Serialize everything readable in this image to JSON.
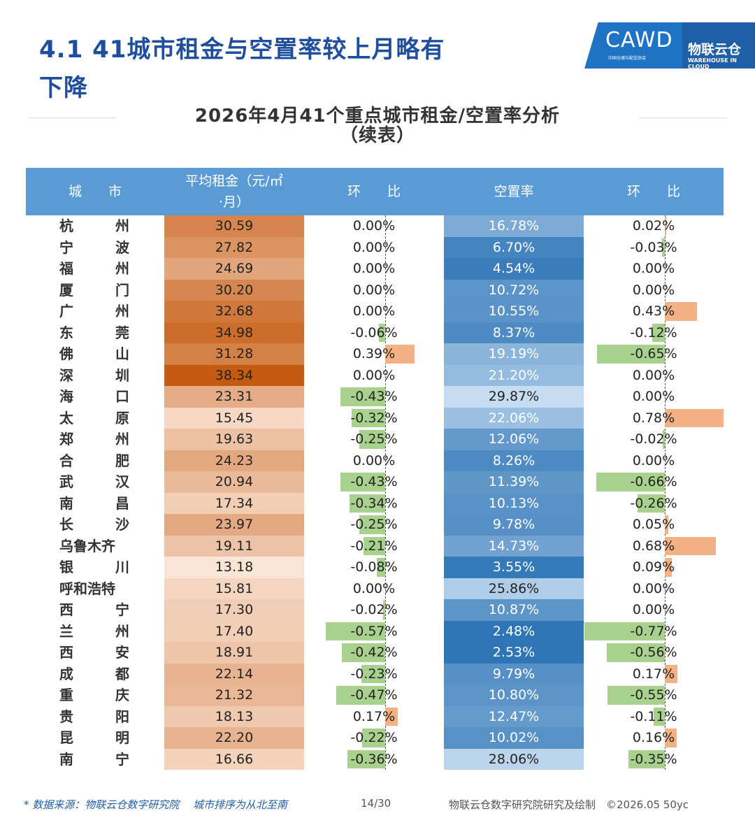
{
  "page_title_line1": "4.1 41城市租金与空置率较上月略有",
  "page_title_line2": "下降",
  "logo": {
    "cawd": "CAWD",
    "cawd_sub": "中国仓储与配送协会",
    "cloud_cn": "物联云仓",
    "cloud_en": "WAREHOUSE IN CLOUD"
  },
  "chart_data": {
    "type": "table",
    "title_line1": "2026年4月41个重点城市租金/空置率分析",
    "title_line2": "（续表）",
    "columns": [
      "城　　市",
      "平均租金（元/㎡·月）",
      "环　　比",
      "空置率",
      "环　　比"
    ],
    "rows": [
      {
        "city": [
          "杭",
          "州"
        ],
        "rent": "30.59",
        "rent_val": 30.59,
        "rent_mom": "0.00%",
        "rent_mom_val": 0.0,
        "vacancy": "16.78%",
        "vacancy_val": 16.78,
        "vac_mom": "0.02%",
        "vac_mom_val": 0.02
      },
      {
        "city": [
          "宁",
          "波"
        ],
        "rent": "27.82",
        "rent_val": 27.82,
        "rent_mom": "0.00%",
        "rent_mom_val": 0.0,
        "vacancy": "6.70%",
        "vacancy_val": 6.7,
        "vac_mom": "-0.03%",
        "vac_mom_val": -0.03
      },
      {
        "city": [
          "福",
          "州"
        ],
        "rent": "24.69",
        "rent_val": 24.69,
        "rent_mom": "0.00%",
        "rent_mom_val": 0.0,
        "vacancy": "4.54%",
        "vacancy_val": 4.54,
        "vac_mom": "0.00%",
        "vac_mom_val": 0.0
      },
      {
        "city": [
          "厦",
          "门"
        ],
        "rent": "30.20",
        "rent_val": 30.2,
        "rent_mom": "0.00%",
        "rent_mom_val": 0.0,
        "vacancy": "10.72%",
        "vacancy_val": 10.72,
        "vac_mom": "0.00%",
        "vac_mom_val": 0.0
      },
      {
        "city": [
          "广",
          "州"
        ],
        "rent": "32.68",
        "rent_val": 32.68,
        "rent_mom": "0.00%",
        "rent_mom_val": 0.0,
        "vacancy": "10.55%",
        "vacancy_val": 10.55,
        "vac_mom": "0.43%",
        "vac_mom_val": 0.43
      },
      {
        "city": [
          "东",
          "莞"
        ],
        "rent": "34.98",
        "rent_val": 34.98,
        "rent_mom": "-0.06%",
        "rent_mom_val": -0.06,
        "vacancy": "8.37%",
        "vacancy_val": 8.37,
        "vac_mom": "-0.12%",
        "vac_mom_val": -0.12
      },
      {
        "city": [
          "佛",
          "山"
        ],
        "rent": "31.28",
        "rent_val": 31.28,
        "rent_mom": "0.39%",
        "rent_mom_val": 0.39,
        "vacancy": "19.19%",
        "vacancy_val": 19.19,
        "vac_mom": "-0.65%",
        "vac_mom_val": -0.65
      },
      {
        "city": [
          "深",
          "圳"
        ],
        "rent": "38.34",
        "rent_val": 38.34,
        "rent_mom": "0.00%",
        "rent_mom_val": 0.0,
        "vacancy": "21.20%",
        "vacancy_val": 21.2,
        "vac_mom": "0.00%",
        "vac_mom_val": 0.0
      },
      {
        "city": [
          "海",
          "口"
        ],
        "rent": "23.31",
        "rent_val": 23.31,
        "rent_mom": "-0.43%",
        "rent_mom_val": -0.43,
        "vacancy": "29.87%",
        "vacancy_val": 29.87,
        "vac_mom": "0.00%",
        "vac_mom_val": 0.0
      },
      {
        "city": [
          "太",
          "原"
        ],
        "rent": "15.45",
        "rent_val": 15.45,
        "rent_mom": "-0.32%",
        "rent_mom_val": -0.32,
        "vacancy": "22.06%",
        "vacancy_val": 22.06,
        "vac_mom": "0.78%",
        "vac_mom_val": 0.78
      },
      {
        "city": [
          "郑",
          "州"
        ],
        "rent": "19.63",
        "rent_val": 19.63,
        "rent_mom": "-0.25%",
        "rent_mom_val": -0.25,
        "vacancy": "12.06%",
        "vacancy_val": 12.06,
        "vac_mom": "-0.02%",
        "vac_mom_val": -0.02
      },
      {
        "city": [
          "合",
          "肥"
        ],
        "rent": "24.23",
        "rent_val": 24.23,
        "rent_mom": "0.00%",
        "rent_mom_val": 0.0,
        "vacancy": "8.26%",
        "vacancy_val": 8.26,
        "vac_mom": "0.00%",
        "vac_mom_val": 0.0
      },
      {
        "city": [
          "武",
          "汉"
        ],
        "rent": "20.94",
        "rent_val": 20.94,
        "rent_mom": "-0.43%",
        "rent_mom_val": -0.43,
        "vacancy": "11.39%",
        "vacancy_val": 11.39,
        "vac_mom": "-0.66%",
        "vac_mom_val": -0.66
      },
      {
        "city": [
          "南",
          "昌"
        ],
        "rent": "17.34",
        "rent_val": 17.34,
        "rent_mom": "-0.34%",
        "rent_mom_val": -0.34,
        "vacancy": "10.13%",
        "vacancy_val": 10.13,
        "vac_mom": "-0.26%",
        "vac_mom_val": -0.26
      },
      {
        "city": [
          "长",
          "沙"
        ],
        "rent": "23.97",
        "rent_val": 23.97,
        "rent_mom": "-0.25%",
        "rent_mom_val": -0.25,
        "vacancy": "9.78%",
        "vacancy_val": 9.78,
        "vac_mom": "0.05%",
        "vac_mom_val": 0.05
      },
      {
        "city": [
          "乌鲁木齐"
        ],
        "rent": "19.11",
        "rent_val": 19.11,
        "rent_mom": "-0.21%",
        "rent_mom_val": -0.21,
        "vacancy": "14.73%",
        "vacancy_val": 14.73,
        "vac_mom": "0.68%",
        "vac_mom_val": 0.68
      },
      {
        "city": [
          "银",
          "川"
        ],
        "rent": "13.18",
        "rent_val": 13.18,
        "rent_mom": "-0.08%",
        "rent_mom_val": -0.08,
        "vacancy": "3.55%",
        "vacancy_val": 3.55,
        "vac_mom": "0.09%",
        "vac_mom_val": 0.09
      },
      {
        "city": [
          "呼和浩特"
        ],
        "rent": "15.81",
        "rent_val": 15.81,
        "rent_mom": "0.00%",
        "rent_mom_val": 0.0,
        "vacancy": "25.86%",
        "vacancy_val": 25.86,
        "vac_mom": "0.00%",
        "vac_mom_val": 0.0
      },
      {
        "city": [
          "西",
          "宁"
        ],
        "rent": "17.30",
        "rent_val": 17.3,
        "rent_mom": "-0.02%",
        "rent_mom_val": -0.02,
        "vacancy": "10.87%",
        "vacancy_val": 10.87,
        "vac_mom": "0.00%",
        "vac_mom_val": 0.0
      },
      {
        "city": [
          "兰",
          "州"
        ],
        "rent": "17.40",
        "rent_val": 17.4,
        "rent_mom": "-0.57%",
        "rent_mom_val": -0.57,
        "vacancy": "2.48%",
        "vacancy_val": 2.48,
        "vac_mom": "-0.77%",
        "vac_mom_val": -0.77
      },
      {
        "city": [
          "西",
          "安"
        ],
        "rent": "18.91",
        "rent_val": 18.91,
        "rent_mom": "-0.42%",
        "rent_mom_val": -0.42,
        "vacancy": "2.53%",
        "vacancy_val": 2.53,
        "vac_mom": "-0.56%",
        "vac_mom_val": -0.56
      },
      {
        "city": [
          "成",
          "都"
        ],
        "rent": "22.14",
        "rent_val": 22.14,
        "rent_mom": "-0.23%",
        "rent_mom_val": -0.23,
        "vacancy": "9.79%",
        "vacancy_val": 9.79,
        "vac_mom": "0.17%",
        "vac_mom_val": 0.17
      },
      {
        "city": [
          "重",
          "庆"
        ],
        "rent": "21.32",
        "rent_val": 21.32,
        "rent_mom": "-0.47%",
        "rent_mom_val": -0.47,
        "vacancy": "10.80%",
        "vacancy_val": 10.8,
        "vac_mom": "-0.55%",
        "vac_mom_val": -0.55
      },
      {
        "city": [
          "贵",
          "阳"
        ],
        "rent": "18.13",
        "rent_val": 18.13,
        "rent_mom": "0.17%",
        "rent_mom_val": 0.17,
        "vacancy": "12.47%",
        "vacancy_val": 12.47,
        "vac_mom": "-0.11%",
        "vac_mom_val": -0.11
      },
      {
        "city": [
          "昆",
          "明"
        ],
        "rent": "22.20",
        "rent_val": 22.2,
        "rent_mom": "-0.22%",
        "rent_mom_val": -0.22,
        "vacancy": "10.02%",
        "vacancy_val": 10.02,
        "vac_mom": "0.16%",
        "vac_mom_val": 0.16
      },
      {
        "city": [
          "南",
          "宁"
        ],
        "rent": "16.66",
        "rent_val": 16.66,
        "rent_mom": "-0.36%",
        "rent_mom_val": -0.36,
        "vacancy": "28.06%",
        "vacancy_val": 28.06,
        "vac_mom": "-0.35%",
        "vac_mom_val": -0.35
      }
    ],
    "colors": {
      "header": "#5b9bd5",
      "positive_bar": "#f4b183",
      "negative_bar": "#a9d18e",
      "rent_high": "#c55a11",
      "rent_low": "#fbe5d6",
      "vacancy_low": "#2e75b6",
      "vacancy_high": "#c5dcf1"
    }
  },
  "footer": {
    "source": "* 数据来源：物联云仓数字研究院　 城市排序为从北至南",
    "page": "14/30",
    "credit": "物联云仓数字研究院研究及绘制　©2026.05 50yc"
  }
}
